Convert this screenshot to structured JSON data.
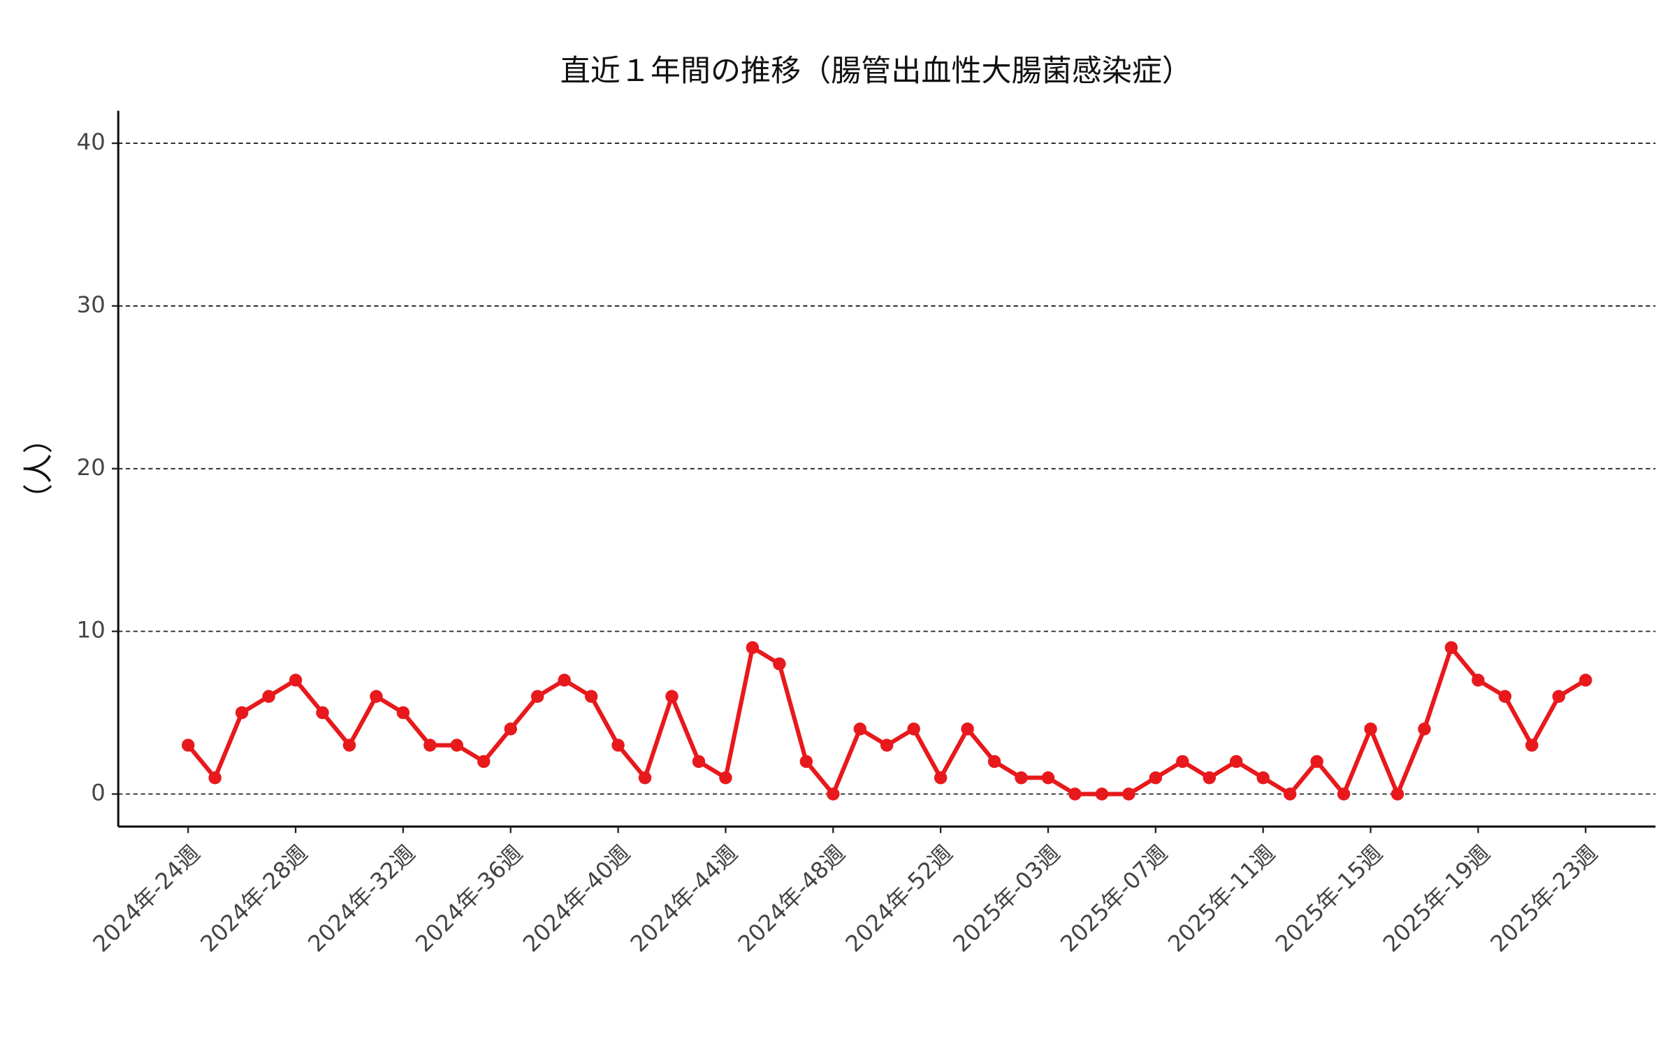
{
  "chart_data": {
    "type": "line",
    "title": "直近１年間の推移（腸管出血性大腸菌感染症）",
    "y_label": "（人）",
    "categories": [
      "2024年-24週",
      null,
      null,
      null,
      "2024年-28週",
      null,
      null,
      null,
      "2024年-32週",
      null,
      null,
      null,
      "2024年-36週",
      null,
      null,
      null,
      "2024年-40週",
      null,
      null,
      null,
      "2024年-44週",
      null,
      null,
      null,
      "2024年-48週",
      null,
      null,
      null,
      "2024年-52週",
      null,
      null,
      null,
      "2025年-03週",
      null,
      null,
      null,
      "2025年-07週",
      null,
      null,
      null,
      "2025年-11週",
      null,
      null,
      null,
      "2025年-15週",
      null,
      null,
      null,
      "2025年-19週",
      null,
      null,
      null,
      "2025年-23週"
    ],
    "series": [
      {
        "name": "腸管出血性大腸菌感染症",
        "color": "#e8191c",
        "values": [
          3,
          1,
          5,
          6,
          7,
          5,
          3,
          6,
          5,
          3,
          3,
          2,
          4,
          6,
          7,
          6,
          3,
          1,
          6,
          2,
          1,
          9,
          8,
          2,
          0,
          4,
          3,
          4,
          1,
          4,
          2,
          1,
          1,
          0,
          0,
          0,
          1,
          2,
          1,
          2,
          1,
          0,
          2,
          0,
          4,
          0,
          4,
          9,
          7,
          6,
          3,
          6,
          7
        ]
      }
    ],
    "ylim": [
      -2,
      42
    ],
    "yticks": [
      0,
      10,
      20,
      30,
      40
    ],
    "grid": true
  }
}
